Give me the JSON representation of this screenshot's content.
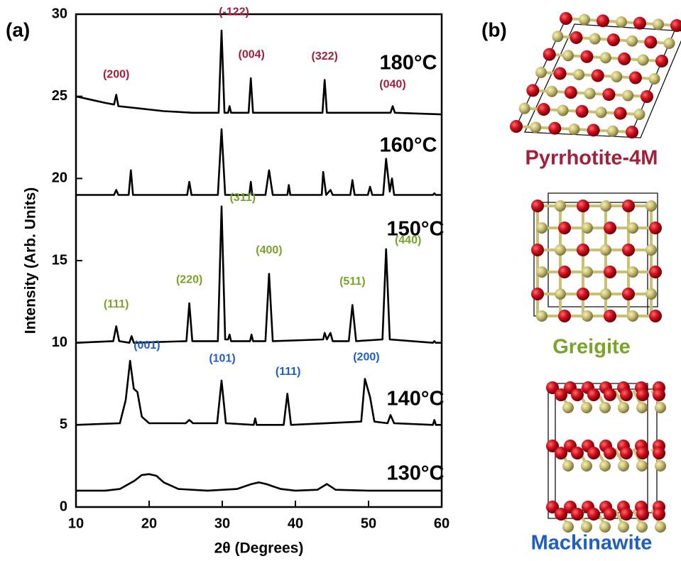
{
  "panels": {
    "a": "(a)",
    "b": "(b)"
  },
  "chart_data": {
    "type": "line",
    "xlabel": "2θ (Degrees)",
    "ylabel": "Intensity (Arb. Units)",
    "xlim": [
      10,
      60
    ],
    "ylim": [
      0,
      30
    ],
    "xticks": [
      10,
      20,
      30,
      40,
      50,
      60
    ],
    "yticks": [
      0,
      5,
      10,
      15,
      20,
      25,
      30
    ],
    "series": [
      {
        "name": "130°C",
        "color": "#000000",
        "x": [
          10,
          14,
          16,
          18,
          19,
          20,
          21,
          22,
          24,
          28,
          32,
          34,
          35,
          36,
          38,
          40,
          43,
          44.3,
          45.5,
          50,
          55,
          60
        ],
        "values": [
          1.0,
          1.0,
          1.1,
          1.6,
          1.95,
          2.0,
          1.9,
          1.5,
          1.1,
          1.0,
          1.1,
          1.4,
          1.5,
          1.4,
          1.1,
          1.0,
          1.05,
          1.4,
          1.05,
          1.0,
          1.0,
          1.0
        ]
      },
      {
        "name": "140°C",
        "color": "#000000",
        "x": [
          10,
          16,
          16.8,
          17.4,
          17.9,
          18.4,
          19,
          20,
          25,
          25.5,
          26,
          29.3,
          29.9,
          30.5,
          34.3,
          34.5,
          34.7,
          38.4,
          38.9,
          39.4,
          49,
          49.5,
          50.2,
          50.8,
          52.6,
          53,
          53.5,
          58.8,
          59,
          59.2,
          60
        ],
        "values": [
          5,
          5.1,
          6.5,
          8.9,
          7.2,
          7.0,
          5.5,
          5.1,
          5.1,
          5.3,
          5.1,
          5.1,
          7.7,
          5.1,
          5.0,
          5.4,
          5.0,
          5.0,
          6.9,
          5.0,
          5.2,
          7.8,
          6.7,
          5.2,
          5.1,
          5.6,
          5.1,
          5.0,
          5.3,
          5.0,
          5.0
        ]
      },
      {
        "name": "150°C",
        "color": "#000000",
        "x": [
          10,
          15.1,
          15.5,
          15.9,
          17.3,
          17.6,
          17.9,
          25.1,
          25.5,
          25.9,
          29.4,
          29.9,
          30.4,
          30.8,
          31,
          31.2,
          33.8,
          34,
          34.2,
          35.9,
          36.4,
          36.9,
          43.8,
          44,
          44.3,
          44.8,
          45.1,
          47.3,
          47.8,
          48.3,
          51.9,
          52.4,
          52.9,
          58.8,
          59,
          59.2,
          60
        ],
        "values": [
          10,
          10.1,
          11.0,
          10.1,
          10.0,
          10.4,
          10.0,
          10.1,
          12.4,
          10.1,
          10.1,
          18.3,
          10.2,
          10.2,
          10.5,
          10.1,
          10.1,
          10.5,
          10.1,
          10.1,
          14.2,
          10.1,
          10.2,
          10.6,
          10.2,
          10.6,
          10.1,
          10.1,
          12.3,
          10.1,
          10.2,
          15.7,
          10.2,
          10.0,
          10.1,
          10.0,
          10.0
        ]
      },
      {
        "name": "160°C",
        "color": "#000000",
        "x": [
          10,
          15.2,
          15.5,
          15.8,
          17.2,
          17.5,
          17.8,
          25.2,
          25.5,
          25.8,
          29.4,
          29.9,
          30.4,
          33.7,
          33.9,
          34.1,
          35.9,
          36.4,
          36.9,
          38.9,
          39.1,
          39.3,
          43.6,
          43.8,
          44.2,
          44.8,
          45.1,
          47.5,
          47.8,
          48.1,
          49.9,
          50.2,
          50.5,
          52,
          52.4,
          52.9,
          53.2,
          53.5,
          58.8,
          59,
          59.2,
          60
        ],
        "values": [
          19,
          19.0,
          19.3,
          19.0,
          19.0,
          20.5,
          19.0,
          19.0,
          19.8,
          19.0,
          19.0,
          23.0,
          19.0,
          19.0,
          19.8,
          19.0,
          19.0,
          20.5,
          19.0,
          19.0,
          19.6,
          19.0,
          19.0,
          20.4,
          19.0,
          19.3,
          19.0,
          19.0,
          19.9,
          19.0,
          19.0,
          19.5,
          19.0,
          19.0,
          21.2,
          19.2,
          20.0,
          19.0,
          19.0,
          19.1,
          19.0,
          19.0
        ]
      },
      {
        "name": "180°C",
        "color": "#000000",
        "x": [
          10,
          12,
          14,
          15.2,
          15.5,
          15.8,
          18,
          22,
          26,
          29.5,
          29.9,
          30.3,
          30.8,
          31,
          31.2,
          33.6,
          33.9,
          34.2,
          43.7,
          44,
          44.3,
          53,
          53.3,
          53.6,
          60
        ],
        "values": [
          25,
          24.8,
          24.6,
          24.5,
          25.1,
          24.4,
          24.3,
          24.1,
          24.0,
          24.0,
          29.0,
          24.0,
          24.0,
          24.4,
          24.0,
          24.0,
          26.1,
          24.0,
          24.0,
          26.0,
          24.0,
          24.0,
          24.4,
          24.0,
          23.9
        ]
      }
    ],
    "annotations": [
      {
        "text": "(200)",
        "x": 15.5,
        "y": 25.8,
        "color": "#a3203a"
      },
      {
        "text": "(-122)",
        "x": 31.6,
        "y": 29.6,
        "color": "#a3203a"
      },
      {
        "text": "(004)",
        "x": 34,
        "y": 27.0,
        "color": "#a3203a"
      },
      {
        "text": "(322)",
        "x": 44,
        "y": 26.9,
        "color": "#a3203a"
      },
      {
        "text": "(040)",
        "x": 53.3,
        "y": 25.2,
        "color": "#a3203a"
      },
      {
        "text": "(111)",
        "x": 15.5,
        "y": 11.8,
        "color": "#7aa32a"
      },
      {
        "text": "(220)",
        "x": 25.5,
        "y": 13.3,
        "color": "#7aa32a"
      },
      {
        "text": "(311)",
        "x": 32.8,
        "y": 18.3,
        "color": "#7aa32a"
      },
      {
        "text": "(400)",
        "x": 36.4,
        "y": 15.1,
        "color": "#7aa32a"
      },
      {
        "text": "(511)",
        "x": 47.8,
        "y": 13.2,
        "color": "#7aa32a"
      },
      {
        "text": "(440)",
        "x": 55.4,
        "y": 15.7,
        "color": "#7aa32a"
      },
      {
        "text": "(001)",
        "x": 19.7,
        "y": 9.3,
        "color": "#1f5fc0"
      },
      {
        "text": "(101)",
        "x": 30,
        "y": 8.5,
        "color": "#1f5fc0"
      },
      {
        "text": "(111)",
        "x": 39,
        "y": 7.7,
        "color": "#1f5fc0"
      },
      {
        "text": "(200)",
        "x": 49.7,
        "y": 8.6,
        "color": "#1f5fc0"
      }
    ]
  },
  "structures": [
    {
      "name": "Pyrrhotite-4M",
      "color": "#a3203a"
    },
    {
      "name": "Greigite",
      "color": "#7aa32a"
    },
    {
      "name": "Mackinawite",
      "color": "#1f5fc0"
    }
  ]
}
